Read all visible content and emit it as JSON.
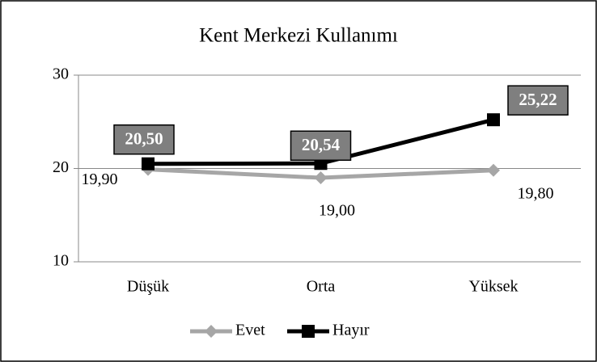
{
  "chart_data": {
    "type": "line",
    "title": "Kent Merkezi Kullanımı",
    "categories": [
      "Düşük",
      "Orta",
      "Yüksek"
    ],
    "series": [
      {
        "name": "Evet",
        "color": "#a6a6a6",
        "marker": "diamond",
        "values": [
          19.9,
          19.0,
          19.8
        ],
        "value_labels": [
          "19,90",
          "19,00",
          "19,80"
        ]
      },
      {
        "name": "Hayır",
        "color": "#000000",
        "marker": "square",
        "values": [
          20.5,
          20.54,
          25.22
        ],
        "value_labels": [
          "20,50",
          "20,54",
          "25,22"
        ]
      }
    ],
    "ylim": [
      10,
      30
    ],
    "yticks": [
      10,
      20,
      30
    ],
    "grid": true,
    "legend": "bottom"
  }
}
